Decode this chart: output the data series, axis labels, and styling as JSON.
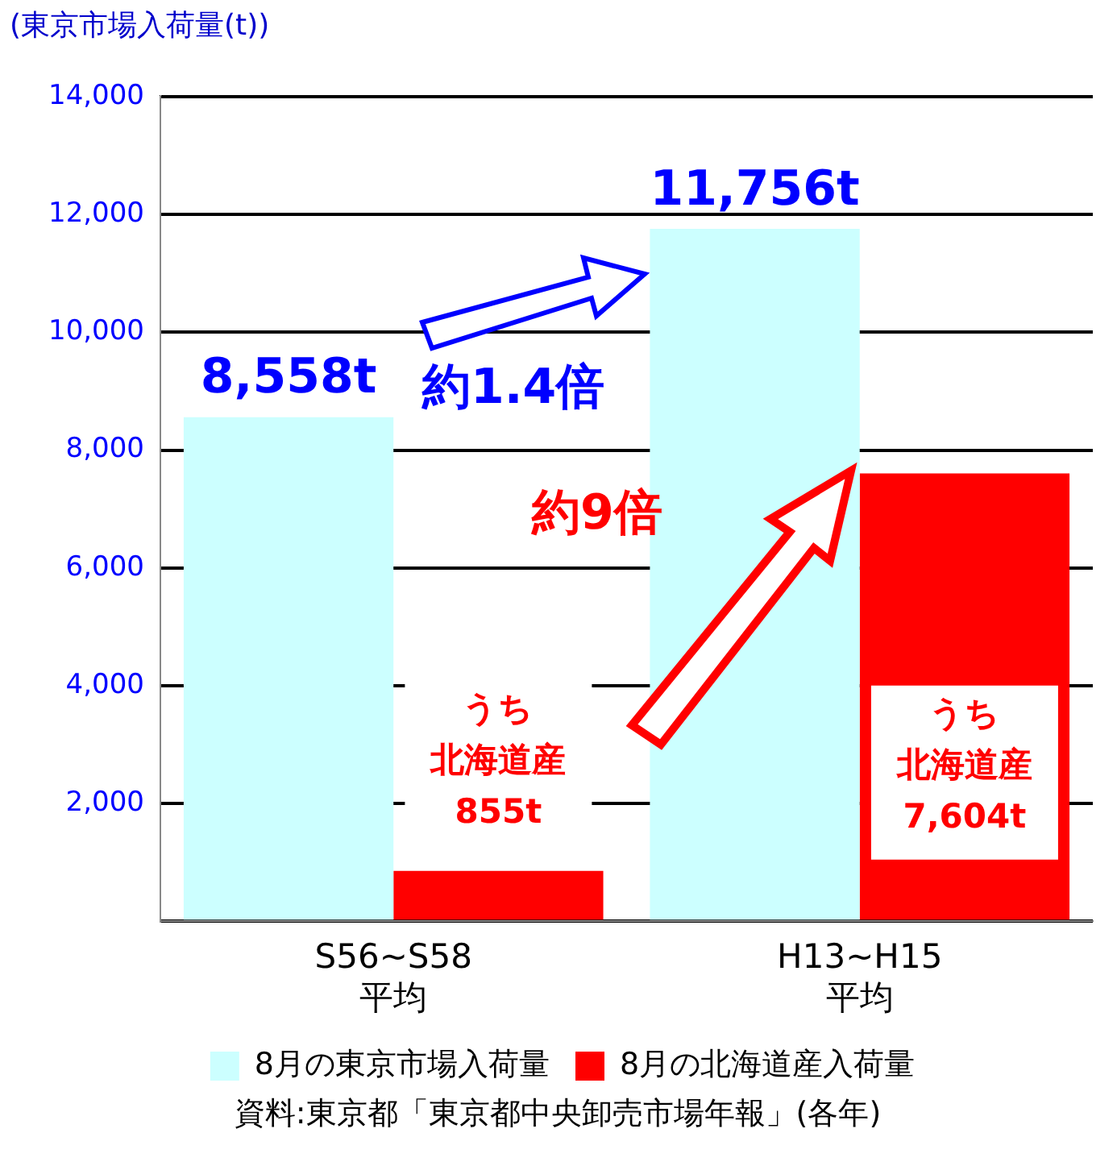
{
  "chart_data": {
    "type": "bar",
    "ylabel": "(東京市場入荷量(t))",
    "categories": [
      "S56~S58 平均",
      "H13~H15 平均"
    ],
    "series": [
      {
        "name": "8月の東京市場入荷量",
        "color": "#ccffff",
        "values": [
          8558,
          11756
        ],
        "value_labels": [
          "8,558t",
          "11,756t"
        ]
      },
      {
        "name": "8月の北海道産入荷量",
        "color": "#ff0000",
        "values": [
          855,
          7604
        ],
        "value_labels": [
          "うち北海道産855t",
          "うち北海道産7,604t"
        ]
      }
    ],
    "ylim": [
      0,
      14000
    ],
    "yticks": [
      {
        "value": 0,
        "label": null
      },
      {
        "value": 2000,
        "label": "2,000"
      },
      {
        "value": 4000,
        "label": "4,000"
      },
      {
        "value": 6000,
        "label": "6,000"
      },
      {
        "value": 8000,
        "label": "8,000"
      },
      {
        "value": 10000,
        "label": "10,000"
      },
      {
        "value": 12000,
        "label": "12,000"
      },
      {
        "value": 14000,
        "label": "14,000"
      }
    ],
    "grid": "y",
    "legend": "bottom",
    "annotations": [
      "約1.4倍",
      "約9倍",
      "資料:東京都「東京都中央卸売市場年報」(各年)"
    ]
  }
}
